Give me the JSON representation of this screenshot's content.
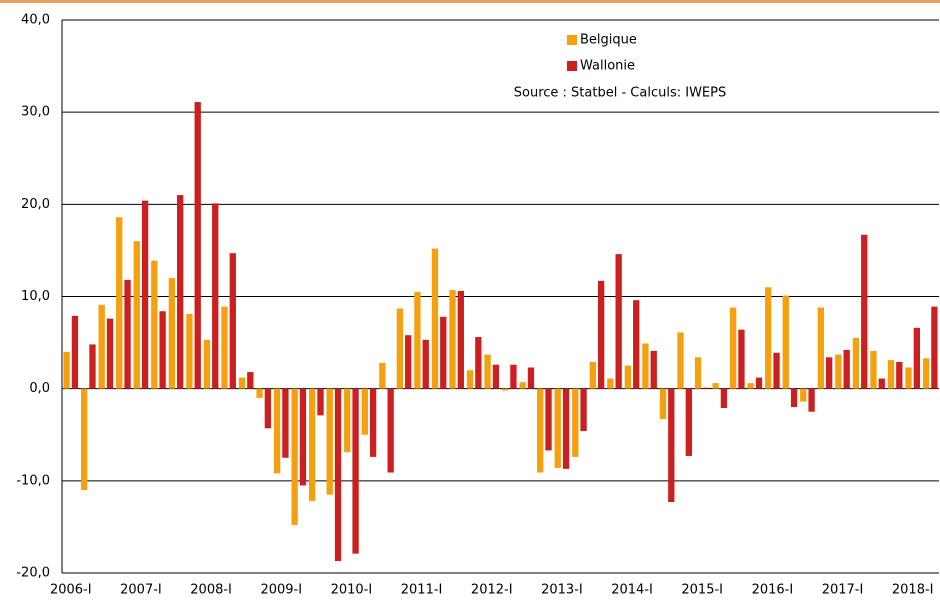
{
  "chart_data": {
    "type": "bar",
    "annotation": "Source : Statbel - Calculs: IWEPS",
    "categories": [
      "2006-I",
      null,
      null,
      null,
      "2007-I",
      null,
      null,
      null,
      "2008-I",
      null,
      null,
      null,
      "2009-I",
      null,
      null,
      null,
      "2010-I",
      null,
      null,
      null,
      "2011-I",
      null,
      null,
      null,
      "2012-I",
      null,
      null,
      null,
      "2013-I",
      null,
      null,
      null,
      "2014-I",
      null,
      null,
      null,
      "2015-I",
      null,
      null,
      null,
      "2016-I",
      null,
      null,
      null,
      "2017-I",
      null,
      null,
      null,
      "2018-I",
      null
    ],
    "series": [
      {
        "name": "Belgique",
        "color": "#f5a00f",
        "values": [
          4.0,
          -11.0,
          9.1,
          18.6,
          16.0,
          13.9,
          12.0,
          8.1,
          5.3,
          8.9,
          1.2,
          -1.0,
          -9.2,
          -14.8,
          -12.2,
          -11.5,
          -6.9,
          -5.0,
          2.8,
          8.7,
          10.5,
          15.2,
          10.7,
          2.0,
          3.7,
          -0.2,
          0.7,
          -9.1,
          -8.6,
          -7.4,
          2.9,
          1.1,
          2.5,
          4.9,
          -3.3,
          6.1,
          3.4,
          0.6,
          8.8,
          0.6,
          11.0,
          10.1,
          -1.4,
          8.8,
          3.7,
          5.5,
          4.1,
          3.1,
          2.3,
          3.3
        ]
      },
      {
        "name": "Wallonie",
        "color": "#cc1f1f",
        "values": [
          7.9,
          4.8,
          7.6,
          11.8,
          20.4,
          8.4,
          21.0,
          31.1,
          20.1,
          14.7,
          1.8,
          -4.3,
          -7.5,
          -10.5,
          -2.9,
          -18.7,
          -17.9,
          -7.4,
          -9.1,
          5.8,
          5.3,
          7.8,
          10.6,
          5.6,
          2.6,
          2.6,
          2.3,
          -6.7,
          -8.7,
          -4.6,
          11.7,
          14.6,
          9.6,
          4.1,
          -12.3,
          -7.3,
          0.1,
          -2.1,
          6.4,
          1.2,
          3.9,
          -2.0,
          -2.5,
          3.4,
          4.2,
          16.7,
          1.1,
          2.9,
          6.6,
          8.9
        ]
      }
    ],
    "ylim": [
      -20,
      40
    ],
    "yticks": [
      {
        "value": -20,
        "label": "-20,0"
      },
      {
        "value": -10,
        "label": "-10,0"
      },
      {
        "value": 0,
        "label": "0,0"
      },
      {
        "value": 10,
        "label": "10,0"
      },
      {
        "value": 20,
        "label": "20,0"
      },
      {
        "value": 30,
        "label": "30,0"
      },
      {
        "value": 40,
        "label": "40,0"
      }
    ],
    "grid": true
  }
}
